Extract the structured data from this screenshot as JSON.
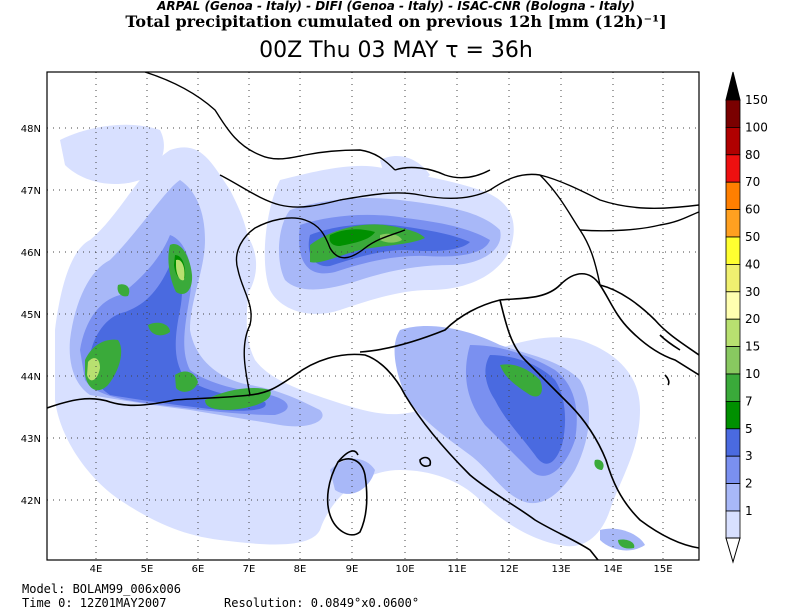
{
  "header": {
    "line1": "ARPAL (Genoa - Italy)  -  DIFI (Genoa - Italy)  -  ISAC-CNR (Bologna - Italy)",
    "line2": "Total precipitation cumulated on previous 12h [mm (12h)⁻¹]",
    "line3": "00Z Thu 03 MAY   τ = 36h"
  },
  "map": {
    "lon_labels": [
      "4E",
      "5E",
      "6E",
      "7E",
      "8E",
      "9E",
      "10E",
      "11E",
      "12E",
      "13E",
      "14E",
      "15E"
    ],
    "lat_labels": [
      "48N",
      "47N",
      "46N",
      "45N",
      "44N",
      "43N",
      "42N"
    ]
  },
  "legend": {
    "levels": [
      "150",
      "100",
      "80",
      "70",
      "60",
      "50",
      "40",
      "30",
      "20",
      "15",
      "10",
      "7",
      "5",
      "3",
      "2",
      "1"
    ],
    "colors": [
      "#7a0000",
      "#b00000",
      "#ee1010",
      "#ff7f00",
      "#ffa020",
      "#ffff30",
      "#f0f070",
      "#ffffb0",
      "#b8e070",
      "#88c860",
      "#3aaa3a",
      "#009000",
      "#4a6ae0",
      "#7a90f0",
      "#a8b8f8",
      "#d8e0ff"
    ],
    "arrow_top_color": "#000000"
  },
  "footer": {
    "model": "Model: BOLAM99_006x006",
    "time": "Time 0: 12Z01MAY2007",
    "resolution": "Resolution: 0.0849°x0.0600°"
  }
}
